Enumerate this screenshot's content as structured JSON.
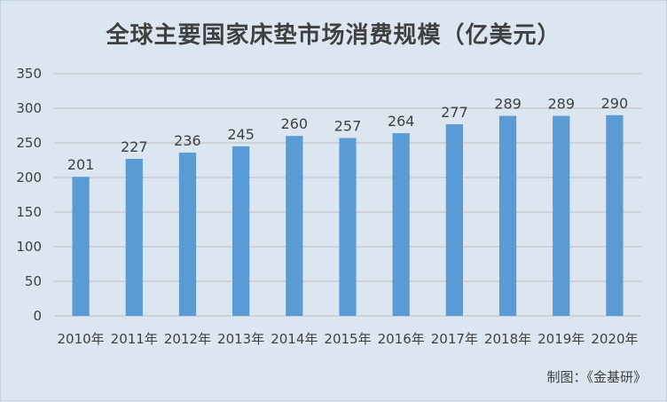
{
  "chart_data": {
    "type": "bar",
    "title": "全球主要国家床垫市场消费规模（亿美元）",
    "categories": [
      "2010年",
      "2011年",
      "2012年",
      "2013年",
      "2014年",
      "2015年",
      "2016年",
      "2017年",
      "2018年",
      "2019年",
      "2020年"
    ],
    "values": [
      201,
      227,
      236,
      245,
      260,
      257,
      264,
      277,
      289,
      289,
      290
    ],
    "ylim": [
      0,
      350
    ],
    "yticks": [
      0,
      50,
      100,
      150,
      200,
      250,
      300,
      350
    ],
    "grid": true,
    "legend": "none",
    "bar_color": "#5b9bd5",
    "source": "制图：《金基研》"
  }
}
